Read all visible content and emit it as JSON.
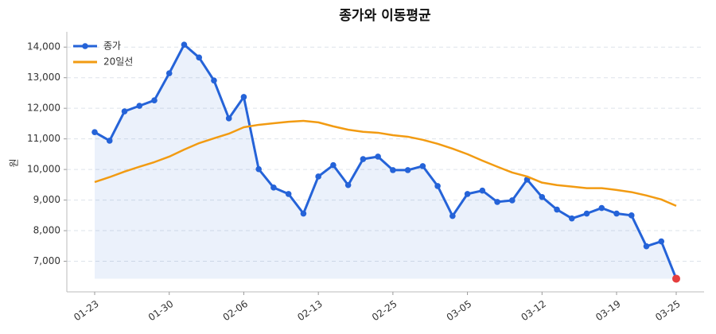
{
  "chart_data": {
    "type": "line",
    "title": "종가와 이동평균",
    "y_label": "원",
    "categories": [
      "01-23",
      null,
      null,
      null,
      null,
      "01-30",
      null,
      null,
      null,
      null,
      "02-06",
      null,
      null,
      null,
      null,
      "02-13",
      null,
      null,
      null,
      null,
      "02-25",
      null,
      null,
      null,
      null,
      "03-05",
      null,
      null,
      null,
      null,
      "03-12",
      null,
      null,
      null,
      null,
      "03-19",
      null,
      null,
      null,
      "03-25"
    ],
    "series": [
      {
        "name": "종가",
        "color": "#2563d8",
        "markers": true,
        "area": true,
        "last_point_color": "#e53e3e",
        "values": [
          11220,
          10940,
          11900,
          12080,
          12260,
          13145,
          14080,
          13660,
          12910,
          11670,
          12370,
          10010,
          9410,
          9200,
          8560,
          9770,
          10140,
          9490,
          10340,
          10420,
          9980,
          9980,
          10110,
          9460,
          8480,
          9200,
          9310,
          8940,
          8990,
          9670,
          9100,
          8690,
          8400,
          8560,
          8740,
          8560,
          8500,
          7490,
          7650,
          6430
        ]
      },
      {
        "name": "20일선",
        "color": "#f29b12",
        "markers": false,
        "values": [
          9590,
          9750,
          9930,
          10090,
          10240,
          10420,
          10650,
          10860,
          11020,
          11170,
          11380,
          11460,
          11510,
          11560,
          11590,
          11540,
          11410,
          11300,
          11230,
          11200,
          11120,
          11070,
          10970,
          10840,
          10680,
          10500,
          10290,
          10090,
          9900,
          9770,
          9570,
          9490,
          9440,
          9390,
          9390,
          9330,
          9260,
          9150,
          9020,
          8810
        ]
      }
    ],
    "ylim": [
      6000,
      14500
    ],
    "yticks": [
      {
        "value": 7000,
        "label": "7,000"
      },
      {
        "value": 8000,
        "label": "8,000"
      },
      {
        "value": 9000,
        "label": "9,000"
      },
      {
        "value": 10000,
        "label": "10,000"
      },
      {
        "value": 11000,
        "label": "11,000"
      },
      {
        "value": 12000,
        "label": "12,000"
      },
      {
        "value": 13000,
        "label": "13,000"
      },
      {
        "value": 14000,
        "label": "14,000"
      }
    ],
    "grid": true,
    "legend": "upper-left"
  }
}
